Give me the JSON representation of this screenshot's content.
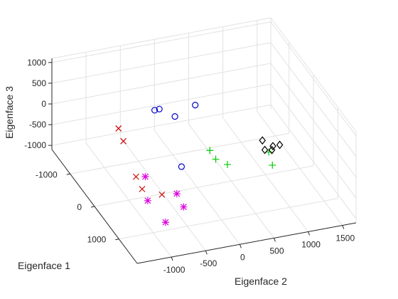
{
  "chart_data": {
    "type": "scatter",
    "view": "3d",
    "xlabel": "Eigenface 1",
    "ylabel": "Eigenface 2",
    "zlabel": "Eigenface 3",
    "x_ticks": [
      {
        "value": -1000,
        "label": "-1000"
      },
      {
        "value": 0,
        "label": "0"
      },
      {
        "value": 1000,
        "label": "1000"
      }
    ],
    "y_ticks": [
      {
        "value": -1000,
        "label": "-1000"
      },
      {
        "value": -500,
        "label": "-500"
      },
      {
        "value": 0,
        "label": "0"
      },
      {
        "value": 500,
        "label": "500"
      },
      {
        "value": 1000,
        "label": "1000"
      },
      {
        "value": 1500,
        "label": "1500"
      }
    ],
    "z_ticks": [
      {
        "value": -1000,
        "label": "-1000"
      },
      {
        "value": -500,
        "label": "-500"
      },
      {
        "value": 0,
        "label": "0"
      },
      {
        "value": 500,
        "label": "500"
      },
      {
        "value": 1000,
        "label": "1000"
      }
    ],
    "xlim": [
      -1750,
      1750
    ],
    "ylim": [
      -1500,
      1700
    ],
    "zlim": [
      -1100,
      1100
    ],
    "grid": true,
    "series": [
      {
        "marker": "o",
        "color": "#0000cc",
        "points": [
          {
            "x": -900,
            "y": -300,
            "z": 150
          },
          {
            "x": -850,
            "y": -250,
            "z": 200
          },
          {
            "x": -500,
            "y": 150,
            "z": 450
          },
          {
            "x": -350,
            "y": -200,
            "z": 400
          },
          {
            "x": 200,
            "y": -300,
            "z": -350
          }
        ]
      },
      {
        "marker": "x",
        "color": "#cc0000",
        "points": [
          {
            "x": -700,
            "y": -900,
            "z": 50
          },
          {
            "x": -500,
            "y": -900,
            "z": -100
          },
          {
            "x": 300,
            "y": -1000,
            "z": -300
          },
          {
            "x": 550,
            "y": -1000,
            "z": -400
          },
          {
            "x": 800,
            "y": -800,
            "z": -400
          }
        ]
      },
      {
        "marker": "*",
        "color": "#dd00dd",
        "points": [
          {
            "x": 400,
            "y": -900,
            "z": -250
          },
          {
            "x": 500,
            "y": -900,
            "z": -750
          },
          {
            "x": 850,
            "y": -600,
            "z": -400
          },
          {
            "x": 850,
            "y": -500,
            "z": -750
          },
          {
            "x": 950,
            "y": -800,
            "z": -950
          }
        ]
      },
      {
        "marker": "+",
        "color": "#00cc00",
        "points": [
          {
            "x": -600,
            "y": 400,
            "z": -800
          },
          {
            "x": -500,
            "y": 450,
            "z": -950
          },
          {
            "x": -300,
            "y": 550,
            "z": -950
          },
          {
            "x": -150,
            "y": 1100,
            "z": -700
          },
          {
            "x": 0,
            "y": 1100,
            "z": -900
          }
        ]
      },
      {
        "marker": "d",
        "color": "#000000",
        "points": [
          {
            "x": -550,
            "y": 1150,
            "z": -750
          },
          {
            "x": -450,
            "y": 1150,
            "z": -900
          },
          {
            "x": -400,
            "y": 1250,
            "z": -800
          },
          {
            "x": -400,
            "y": 1350,
            "z": -800
          },
          {
            "x": -300,
            "y": 1200,
            "z": -800
          }
        ]
      }
    ]
  }
}
